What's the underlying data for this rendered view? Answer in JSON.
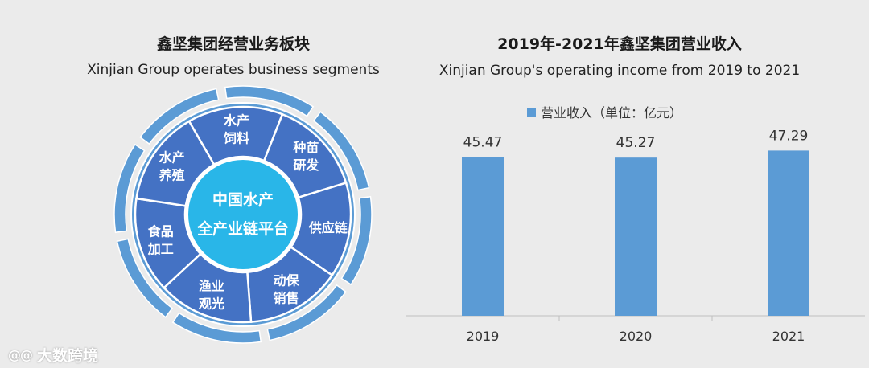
{
  "segments_panel": {
    "title": "鑫坚集团经营业务板块",
    "subtitle": "Xinjian Group operates business segments",
    "center_lines": [
      "中国水产",
      "全产业链平台"
    ],
    "segments": [
      {
        "lines": [
          "水产",
          "饲料"
        ]
      },
      {
        "lines": [
          "种苗",
          "研发"
        ]
      },
      {
        "lines": [
          "供应链"
        ]
      },
      {
        "lines": [
          "动保",
          "销售"
        ]
      },
      {
        "lines": [
          "渔业",
          "观光"
        ]
      },
      {
        "lines": [
          "食品",
          "加工"
        ]
      },
      {
        "lines": [
          "水产",
          "养殖"
        ]
      }
    ],
    "colors": {
      "segment": "#4472c4",
      "center": "#29b6e8",
      "ring": "#5b9bd5",
      "divider": "#ffffff"
    }
  },
  "chart_data": {
    "type": "bar",
    "title": "2019年-2021年鑫坚集团营业收入",
    "subtitle": "Xinjian Group's operating income from 2019 to 2021",
    "categories": [
      "2019",
      "2020",
      "2021"
    ],
    "series": [
      {
        "name": "营业收入（单位：亿元）",
        "values": [
          45.47,
          45.27,
          47.29
        ],
        "color": "#5b9bd5"
      }
    ],
    "value_labels": [
      "45.47",
      "45.27",
      "47.29"
    ],
    "xlabel": "",
    "ylabel": "",
    "ylim": [
      0,
      57.5
    ],
    "grid": false,
    "legend_position": "top"
  },
  "watermark": {
    "logo": "@@",
    "text": "大数跨境"
  }
}
